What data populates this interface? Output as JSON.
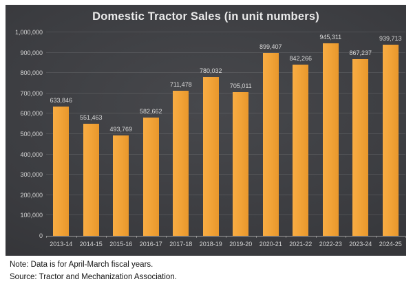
{
  "chart_data": {
    "type": "bar",
    "title": "Domestic Tractor Sales (in unit numbers)",
    "categories": [
      "2013-14",
      "2014-15",
      "2015-16",
      "2016-17",
      "2017-18",
      "2018-19",
      "2019-20",
      "2020-21",
      "2021-22",
      "2022-23",
      "2023-24",
      "2024-25"
    ],
    "values": [
      633846,
      551463,
      493769,
      582662,
      711478,
      780032,
      705011,
      899407,
      842266,
      945311,
      867237,
      939713
    ],
    "value_labels": [
      "633,846",
      "551,463",
      "493,769",
      "582,662",
      "711,478",
      "780,032",
      "705,011",
      "899,407",
      "842,266",
      "945,311",
      "867,237",
      "939,713"
    ],
    "xlabel": "",
    "ylabel": "",
    "ylim": [
      0,
      1000000
    ],
    "y_tick_step": 100000,
    "y_tick_labels": [
      "0",
      "100,000",
      "200,000",
      "300,000",
      "400,000",
      "500,000",
      "600,000",
      "700,000",
      "800,000",
      "900,000",
      "1,000,000"
    ],
    "grid": true,
    "legend": "none",
    "bar_color": "#F2A338",
    "panel_background": "#3B3C40",
    "label_color": "#D9D9D9"
  },
  "captions": {
    "note": "Note: Data is for April-March fiscal years.",
    "source": "Source: Tractor and Mechanization Association."
  }
}
